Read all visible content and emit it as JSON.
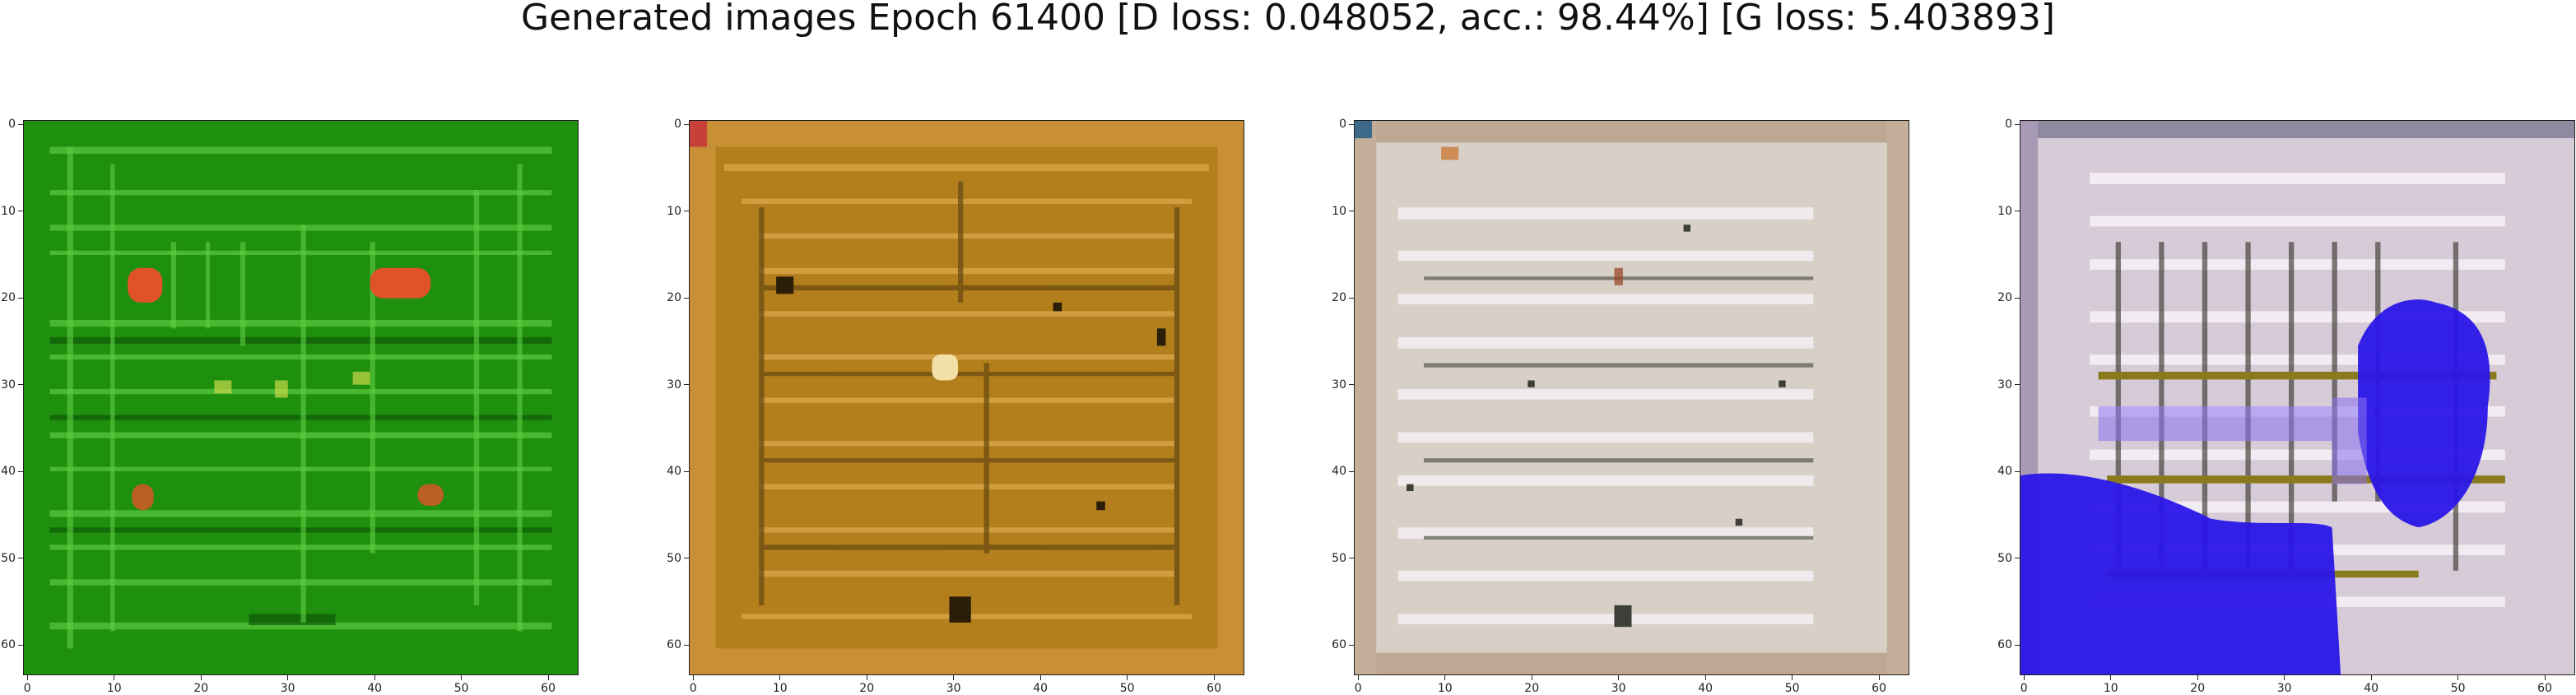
{
  "figure": {
    "suptitle": "Generated images Epoch 61400 [D loss: 0.048052, acc.: 98.44%] [G loss: 5.403893]"
  },
  "chart_data": [
    {
      "type": "heatmap",
      "title": "",
      "description_colors": {
        "base": "#1f8f0e",
        "line": "#56c63c",
        "spot": "#e0522a"
      },
      "xlim": [
        0,
        64
      ],
      "ylim": [
        64,
        0
      ],
      "xticks": [
        0,
        10,
        20,
        30,
        40,
        50,
        60
      ],
      "yticks": [
        0,
        10,
        20,
        30,
        40,
        50,
        60
      ]
    },
    {
      "type": "heatmap",
      "title": "",
      "description_colors": {
        "base": "#b27f1c",
        "line": "#d8a64a",
        "dark": "#3a2a10"
      },
      "xlim": [
        0,
        64
      ],
      "ylim": [
        64,
        0
      ],
      "xticks": [
        0,
        10,
        20,
        30,
        40,
        50,
        60
      ],
      "yticks": [
        0,
        10,
        20,
        30,
        40,
        50,
        60
      ]
    },
    {
      "type": "heatmap",
      "title": "",
      "description_colors": {
        "base": "#d8cfc6",
        "line": "#f1eef0",
        "dark": "#4d4a3c"
      },
      "xlim": [
        0,
        64
      ],
      "ylim": [
        64,
        0
      ],
      "xticks": [
        0,
        10,
        20,
        30,
        40,
        50,
        60
      ],
      "yticks": [
        0,
        10,
        20,
        30,
        40,
        50,
        60
      ]
    },
    {
      "type": "heatmap",
      "title": "",
      "description_colors": {
        "base": "#d7cbd8",
        "line": "#f3eef4",
        "blue": "#2a16e8",
        "dark": "#4e4416"
      },
      "xlim": [
        0,
        64
      ],
      "ylim": [
        64,
        0
      ],
      "xticks": [
        0,
        10,
        20,
        30,
        40,
        50,
        60
      ],
      "yticks": [
        0,
        10,
        20,
        30,
        40,
        50,
        60
      ]
    }
  ]
}
